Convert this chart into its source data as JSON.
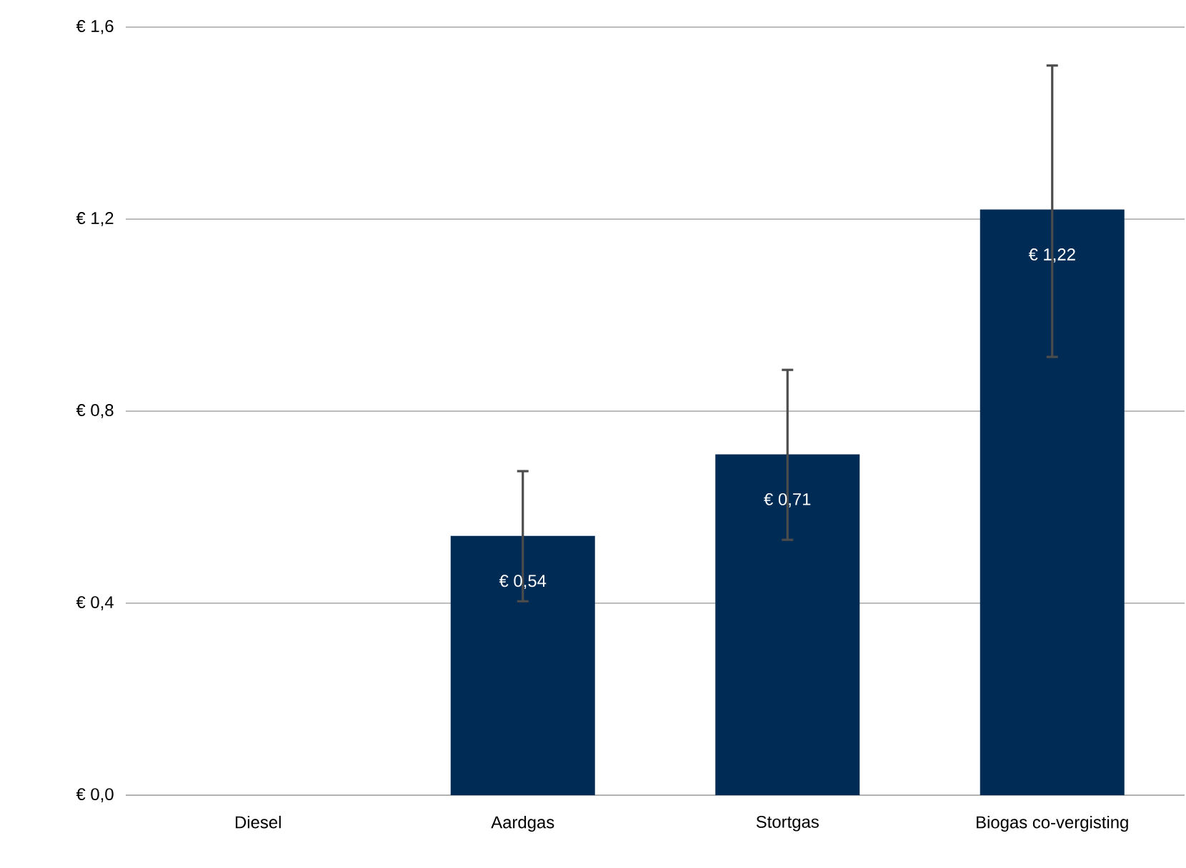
{
  "chart_data": {
    "type": "bar",
    "categories": [
      "Diesel",
      "Aardgas",
      "Stortgas",
      "Biogas co-vergisting"
    ],
    "values": [
      null,
      0.54,
      0.71,
      1.22
    ],
    "value_labels": [
      null,
      "€ 0,54",
      "€ 0,71",
      "€ 1,22"
    ],
    "errors": [
      null,
      [
        0.404,
        0.675
      ],
      [
        0.532,
        0.886
      ],
      [
        0.913,
        1.52
      ]
    ],
    "color": "#002b55",
    "ylim": [
      0,
      1.6
    ],
    "yticks": [
      {
        "value": 0,
        "label": "€ 0,0"
      },
      {
        "value": 0.4,
        "label": "€ 0,4"
      },
      {
        "value": 0.8,
        "label": "€ 0,8"
      },
      {
        "value": 1.2,
        "label": "€ 1,2"
      },
      {
        "value": 1.6,
        "label": "€ 1,6"
      }
    ],
    "grid": "y"
  }
}
